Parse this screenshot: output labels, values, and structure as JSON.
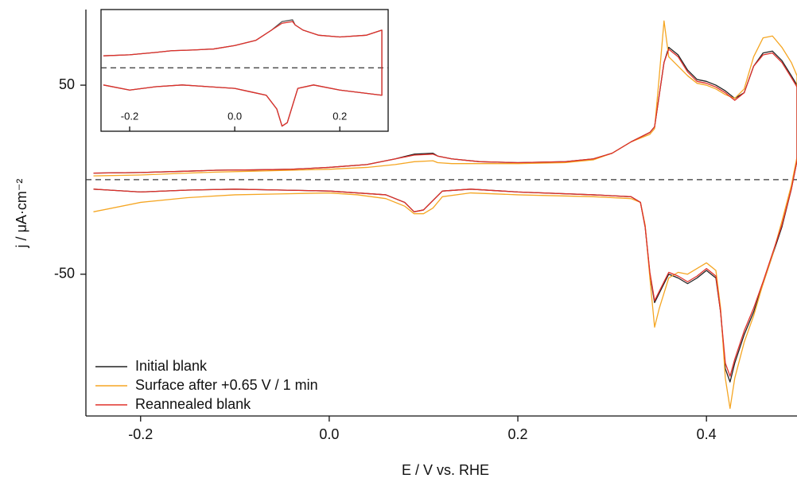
{
  "chart_data": [
    {
      "type": "line",
      "x_label": "E / V vs. RHE",
      "y_label": "j / μA·cm⁻²",
      "xlim": [
        -0.258,
        0.496
      ],
      "ylim": [
        -125,
        90
      ],
      "xticks": [
        -0.2,
        {
          "value": 0,
          "label": "0.0"
        },
        0.2,
        0.4
      ],
      "yticks": [
        -50,
        50
      ],
      "legend": "lower left",
      "x": [
        -0.25,
        -0.2,
        -0.15,
        -0.12,
        -0.08,
        -0.04,
        0,
        0.04,
        0.07,
        0.09,
        0.11,
        0.115,
        0.13,
        0.16,
        0.2,
        0.25,
        0.28,
        0.3,
        0.32,
        0.34,
        0.345,
        0.35,
        0.355,
        0.36,
        0.37,
        0.38,
        0.39,
        0.4,
        0.41,
        0.42,
        0.43,
        0.44,
        0.45,
        0.46,
        0.47,
        0.48,
        0.49,
        0.496,
        0.496,
        0.49,
        0.48,
        0.47,
        0.46,
        0.45,
        0.44,
        0.43,
        0.425,
        0.42,
        0.415,
        0.41,
        0.4,
        0.39,
        0.38,
        0.37,
        0.36,
        0.35,
        0.345,
        0.34,
        0.335,
        0.33,
        0.32,
        0.28,
        0.2,
        0.15,
        0.12,
        0.11,
        0.1,
        0.09,
        0.08,
        0.06,
        0.03,
        0,
        -0.05,
        -0.1,
        -0.15,
        -0.2,
        -0.25
      ],
      "series": [
        {
          "name": "Initial blank",
          "color": "#222222",
          "values": [
            3.5,
            3.8,
            4.5,
            5,
            5.2,
            5.5,
            6.5,
            8,
            11,
            13.5,
            14,
            12.5,
            11,
            9.5,
            9,
            9.5,
            11,
            14,
            20,
            25,
            28,
            45,
            62,
            70,
            66,
            58,
            53,
            52,
            50,
            47,
            43,
            46,
            60,
            67,
            68,
            63,
            55,
            50,
            10,
            -5,
            -25,
            -40,
            -55,
            -70,
            -82,
            -97,
            -107,
            -100,
            -70,
            -52,
            -48,
            -52,
            -55,
            -52,
            -50,
            -60,
            -65,
            -50,
            -25,
            -12,
            -9,
            -8,
            -6.5,
            -5,
            -6,
            -11,
            -16,
            -17,
            -12,
            -8,
            -7,
            -6,
            -5.5,
            -5,
            -5.5,
            -6.5,
            -5
          ]
        },
        {
          "name": "Surface after +0.65 V / 1 min",
          "color": "#f5a623",
          "values": [
            2,
            2.5,
            3.5,
            4,
            4.5,
            5,
            5.5,
            6.5,
            8,
            9.5,
            10,
            9,
            8.5,
            8.5,
            8.5,
            9,
            10.5,
            14,
            20,
            24,
            27,
            55,
            84,
            65,
            60,
            55,
            51,
            50,
            48,
            45,
            43,
            48,
            65,
            75,
            76,
            70,
            62,
            55,
            12,
            -3,
            -22,
            -40,
            -55,
            -72,
            -86,
            -105,
            -121,
            -105,
            -68,
            -48,
            -44,
            -47,
            -50,
            -49,
            -52,
            -68,
            -78,
            -52,
            -24,
            -12,
            -10,
            -9,
            -8,
            -7,
            -9,
            -15,
            -18,
            -18,
            -14,
            -10,
            -8,
            -7,
            -7.5,
            -8,
            -9.5,
            -12,
            -17
          ]
        },
        {
          "name": "Reannealed blank",
          "color": "#e0302a",
          "values": [
            3.5,
            3.8,
            4.5,
            5,
            5.2,
            5.5,
            6.5,
            8,
            11,
            13,
            13.5,
            12.5,
            11,
            9.5,
            9,
            9.5,
            11,
            14,
            20,
            25,
            28,
            45,
            62,
            69,
            65,
            57,
            52,
            51,
            49,
            46,
            42,
            46,
            60,
            66,
            67,
            62,
            54,
            49,
            10,
            -5,
            -24,
            -39,
            -54,
            -68,
            -80,
            -95,
            -104,
            -97,
            -70,
            -51,
            -47,
            -51,
            -54,
            -51,
            -49,
            -59,
            -64,
            -49,
            -25,
            -12,
            -9,
            -8,
            -6.5,
            -5,
            -6,
            -11,
            -16,
            -17,
            -12,
            -8,
            -7,
            -6,
            -5.5,
            -5,
            -5.5,
            -6.5,
            -5
          ]
        }
      ]
    },
    {
      "type": "line",
      "xlim": [
        -0.2545,
        0.292
      ],
      "ylim": [
        -18.5,
        17
      ],
      "xticks": [
        -0.2,
        {
          "value": 0,
          "label": "0.0"
        },
        0.2
      ],
      "x": [
        -0.25,
        -0.2,
        -0.15,
        -0.12,
        -0.08,
        -0.04,
        0,
        0.04,
        0.07,
        0.09,
        0.11,
        0.115,
        0.13,
        0.16,
        0.2,
        0.25,
        0.28,
        0.28,
        0.2,
        0.15,
        0.12,
        0.11,
        0.1,
        0.09,
        0.08,
        0.06,
        0.03,
        0,
        -0.05,
        -0.1,
        -0.15,
        -0.2,
        -0.25
      ],
      "series": [
        {
          "color": "#555555",
          "values": [
            3.5,
            3.8,
            4.5,
            5,
            5.2,
            5.5,
            6.5,
            8,
            11,
            13.5,
            14,
            12.5,
            11,
            9.5,
            9,
            9.5,
            11,
            -8,
            -6.5,
            -5,
            -6,
            -11,
            -16,
            -17,
            -12,
            -8,
            -7,
            -6,
            -5.5,
            -5,
            -5.5,
            -6.5,
            -5
          ]
        },
        {
          "color": "#e0302a",
          "values": [
            3.5,
            3.8,
            4.5,
            5,
            5.2,
            5.5,
            6.5,
            8,
            11,
            13,
            13.5,
            12.5,
            11,
            9.5,
            9,
            9.5,
            11,
            -8,
            -6.5,
            -5,
            -6,
            -11,
            -16,
            -17,
            -12,
            -8,
            -7,
            -6,
            -5.5,
            -5,
            -5.5,
            -6.5,
            -5
          ]
        }
      ]
    }
  ]
}
